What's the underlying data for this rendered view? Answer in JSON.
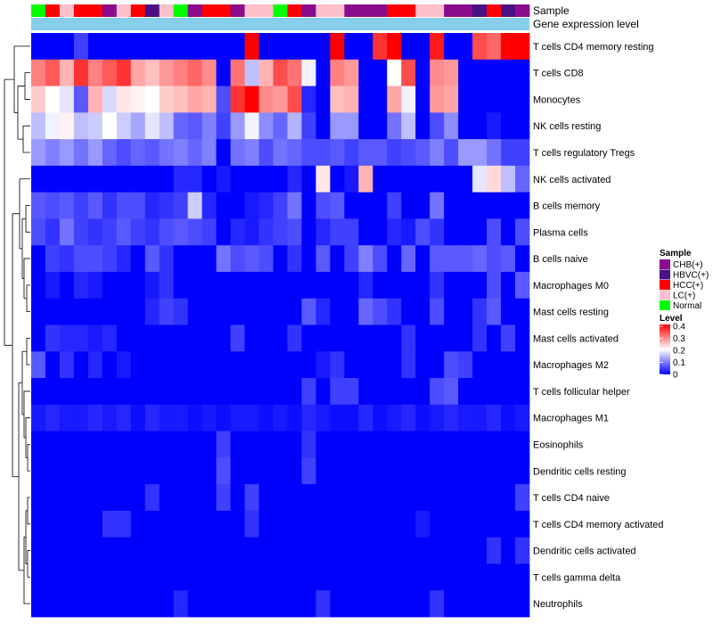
{
  "chart_data": {
    "type": "heatmap",
    "title": "",
    "annotation_labels": {
      "sample": "Sample",
      "gene_expression": "Gene expression level"
    },
    "sample_legend": {
      "title": "Sample",
      "entries": [
        {
          "label": "CHB(+)",
          "color": "#8B0C8C"
        },
        {
          "label": "HBVC(+)",
          "color": "#4B1085"
        },
        {
          "label": "HCC(+)",
          "color": "#FF0000"
        },
        {
          "label": "LC(+)",
          "color": "#FFC0CB"
        },
        {
          "label": "Normal",
          "color": "#00FF00"
        }
      ]
    },
    "level_legend": {
      "title": "Level",
      "ticks": [
        "0.4",
        "0.3",
        "0.2",
        "0.1",
        "0"
      ],
      "range": [
        0,
        0.4
      ],
      "colors": {
        "low": "#0000FF",
        "mid": "#FFFFFF",
        "high": "#FF0000"
      }
    },
    "gene_expression_bar_color": "#87CEEB",
    "sample_groups": [
      "Normal",
      "HCC(+)",
      "LC(+)",
      "HCC(+)",
      "HCC(+)",
      "CHB(+)",
      "LC(+)",
      "HCC(+)",
      "HBVC(+)",
      "LC(+)",
      "Normal",
      "CHB(+)",
      "HCC(+)",
      "HCC(+)",
      "CHB(+)",
      "LC(+)",
      "LC(+)",
      "Normal",
      "HCC(+)",
      "CHB(+)",
      "LC(+)",
      "LC(+)",
      "CHB(+)",
      "CHB(+)",
      "CHB(+)",
      "HCC(+)",
      "HCC(+)",
      "LC(+)",
      "LC(+)",
      "CHB(+)",
      "CHB(+)",
      "HBVC(+)",
      "HCC(+)",
      "HBVC(+)",
      "CHB(+)"
    ],
    "rows": [
      "T cells CD4 memory resting",
      "T cells CD8",
      "Monocytes",
      "NK cells resting",
      "T cells regulatory  Tregs",
      "NK cells activated",
      "B cells memory",
      "Plasma cells",
      "B cells naive",
      "Macrophages M0",
      "Mast cells resting",
      "Mast cells activated",
      "Macrophages M2",
      "T cells follicular helper",
      "Macrophages M1",
      "Eosinophils",
      "Dendritic cells resting",
      "T cells CD4 naive",
      "T cells CD4 memory activated",
      "Dendritic cells activated",
      "T cells gamma delta",
      "Neutrophils"
    ],
    "values": [
      [
        0.0,
        0.0,
        0.0,
        0.05,
        0.0,
        0.0,
        0.0,
        0.0,
        0.0,
        0.0,
        0.0,
        0.0,
        0.0,
        0.0,
        0.0,
        0.42,
        0.0,
        0.0,
        0.0,
        0.0,
        0.0,
        0.42,
        0.0,
        0.0,
        0.36,
        0.4,
        0.0,
        0.0,
        0.38,
        0.0,
        0.0,
        0.34,
        0.32,
        0.42,
        0.42
      ],
      [
        0.3,
        0.33,
        0.26,
        0.36,
        0.3,
        0.33,
        0.36,
        0.27,
        0.25,
        0.28,
        0.3,
        0.32,
        0.29,
        0.0,
        0.31,
        0.15,
        0.26,
        0.34,
        0.31,
        0.19,
        0.0,
        0.3,
        0.28,
        0.0,
        0.0,
        0.2,
        0.34,
        0.0,
        0.29,
        0.28,
        0.0,
        0.0,
        0.0,
        0.0,
        0.0
      ],
      [
        0.24,
        0.2,
        0.18,
        0.07,
        0.26,
        0.17,
        0.22,
        0.21,
        0.2,
        0.24,
        0.25,
        0.27,
        0.26,
        0.06,
        0.36,
        0.4,
        0.29,
        0.28,
        0.34,
        0.03,
        0.0,
        0.25,
        0.26,
        0.0,
        0.0,
        0.27,
        0.19,
        0.0,
        0.28,
        0.27,
        0.0,
        0.0,
        0.0,
        0.0,
        0.0
      ],
      [
        0.15,
        0.19,
        0.21,
        0.15,
        0.16,
        0.2,
        0.16,
        0.13,
        0.18,
        0.15,
        0.08,
        0.07,
        0.1,
        0.05,
        0.12,
        0.19,
        0.11,
        0.08,
        0.14,
        0.05,
        0.0,
        0.12,
        0.12,
        0.0,
        0.0,
        0.09,
        0.15,
        0.0,
        0.06,
        0.11,
        0.0,
        0.0,
        0.02,
        0.0,
        0.0
      ],
      [
        0.12,
        0.1,
        0.12,
        0.09,
        0.12,
        0.08,
        0.06,
        0.08,
        0.07,
        0.09,
        0.1,
        0.08,
        0.1,
        0.0,
        0.09,
        0.1,
        0.06,
        0.09,
        0.08,
        0.06,
        0.06,
        0.07,
        0.05,
        0.07,
        0.07,
        0.05,
        0.06,
        0.07,
        0.1,
        0.06,
        0.12,
        0.12,
        0.09,
        0.05,
        0.05
      ],
      [
        0.0,
        0.0,
        0.0,
        0.0,
        0.0,
        0.0,
        0.0,
        0.0,
        0.0,
        0.0,
        0.03,
        0.03,
        0.0,
        0.02,
        0.0,
        0.0,
        0.0,
        0.0,
        0.03,
        0.0,
        0.22,
        0.0,
        0.02,
        0.26,
        0.0,
        0.0,
        0.0,
        0.0,
        0.0,
        0.0,
        0.0,
        0.18,
        0.23,
        0.15,
        0.08
      ],
      [
        0.07,
        0.06,
        0.07,
        0.05,
        0.07,
        0.04,
        0.06,
        0.06,
        0.03,
        0.04,
        0.05,
        0.16,
        0.03,
        0.0,
        0.0,
        0.02,
        0.03,
        0.05,
        0.09,
        0.0,
        0.06,
        0.07,
        0.0,
        0.0,
        0.0,
        0.05,
        0.0,
        0.0,
        0.09,
        0.0,
        0.0,
        0.0,
        0.0,
        0.0,
        0.0
      ],
      [
        0.06,
        0.04,
        0.09,
        0.05,
        0.04,
        0.05,
        0.07,
        0.05,
        0.04,
        0.06,
        0.07,
        0.06,
        0.05,
        0.0,
        0.03,
        0.02,
        0.04,
        0.05,
        0.06,
        0.0,
        0.03,
        0.05,
        0.05,
        0.0,
        0.0,
        0.03,
        0.02,
        0.06,
        0.04,
        0.0,
        0.0,
        0.0,
        0.06,
        0.0,
        0.06
      ],
      [
        0.0,
        0.05,
        0.04,
        0.06,
        0.06,
        0.05,
        0.03,
        0.0,
        0.07,
        0.04,
        0.0,
        0.0,
        0.0,
        0.09,
        0.06,
        0.07,
        0.06,
        0.0,
        0.04,
        0.0,
        0.07,
        0.0,
        0.05,
        0.1,
        0.06,
        0.0,
        0.08,
        0.0,
        0.07,
        0.07,
        0.07,
        0.08,
        0.06,
        0.07,
        0.0
      ],
      [
        0.0,
        0.02,
        0.0,
        0.03,
        0.02,
        0.0,
        0.0,
        0.0,
        0.02,
        0.04,
        0.0,
        0.0,
        0.0,
        0.0,
        0.0,
        0.0,
        0.0,
        0.0,
        0.0,
        0.0,
        0.0,
        0.0,
        0.0,
        0.03,
        0.0,
        0.0,
        0.0,
        0.0,
        0.04,
        0.0,
        0.0,
        0.0,
        0.06,
        0.0,
        0.07
      ],
      [
        0.0,
        0.0,
        0.0,
        0.0,
        0.0,
        0.0,
        0.0,
        0.0,
        0.03,
        0.05,
        0.04,
        0.0,
        0.0,
        0.0,
        0.0,
        0.0,
        0.0,
        0.0,
        0.0,
        0.07,
        0.03,
        0.0,
        0.0,
        0.08,
        0.06,
        0.04,
        0.0,
        0.0,
        0.06,
        0.0,
        0.0,
        0.04,
        0.07,
        0.0,
        0.0
      ],
      [
        0.0,
        0.04,
        0.03,
        0.03,
        0.02,
        0.03,
        0.0,
        0.0,
        0.0,
        0.0,
        0.0,
        0.0,
        0.0,
        0.0,
        0.05,
        0.0,
        0.0,
        0.0,
        0.04,
        0.0,
        0.0,
        0.0,
        0.0,
        0.0,
        0.0,
        0.0,
        0.04,
        0.0,
        0.0,
        0.0,
        0.0,
        0.04,
        0.0,
        0.05,
        0.0
      ],
      [
        0.07,
        0.0,
        0.04,
        0.0,
        0.03,
        0.0,
        0.02,
        0.0,
        0.0,
        0.0,
        0.0,
        0.0,
        0.0,
        0.0,
        0.0,
        0.0,
        0.0,
        0.0,
        0.0,
        0.0,
        0.02,
        0.04,
        0.0,
        0.0,
        0.0,
        0.0,
        0.04,
        0.0,
        0.0,
        0.06,
        0.05,
        0.0,
        0.0,
        0.0,
        0.0
      ],
      [
        0.0,
        0.0,
        0.0,
        0.0,
        0.0,
        0.0,
        0.0,
        0.0,
        0.0,
        0.0,
        0.0,
        0.0,
        0.0,
        0.0,
        0.0,
        0.0,
        0.0,
        0.0,
        0.0,
        0.05,
        0.0,
        0.05,
        0.05,
        0.0,
        0.0,
        0.0,
        0.0,
        0.0,
        0.06,
        0.07,
        0.0,
        0.0,
        0.0,
        0.0,
        0.0
      ],
      [
        0.02,
        0.03,
        0.02,
        0.02,
        0.03,
        0.02,
        0.03,
        0.01,
        0.03,
        0.02,
        0.02,
        0.01,
        0.02,
        0.01,
        0.02,
        0.02,
        0.01,
        0.02,
        0.01,
        0.03,
        0.02,
        0.01,
        0.01,
        0.03,
        0.01,
        0.02,
        0.03,
        0.01,
        0.02,
        0.03,
        0.02,
        0.02,
        0.03,
        0.01,
        0.02
      ],
      [
        0.0,
        0.0,
        0.0,
        0.0,
        0.0,
        0.0,
        0.0,
        0.0,
        0.0,
        0.0,
        0.0,
        0.0,
        0.0,
        0.05,
        0.0,
        0.0,
        0.0,
        0.0,
        0.0,
        0.04,
        0.0,
        0.0,
        0.0,
        0.0,
        0.0,
        0.0,
        0.0,
        0.0,
        0.0,
        0.0,
        0.0,
        0.0,
        0.0,
        0.0,
        0.0
      ],
      [
        0.0,
        0.0,
        0.0,
        0.0,
        0.0,
        0.0,
        0.0,
        0.0,
        0.0,
        0.0,
        0.0,
        0.0,
        0.0,
        0.06,
        0.0,
        0.0,
        0.0,
        0.0,
        0.0,
        0.05,
        0.0,
        0.0,
        0.0,
        0.0,
        0.0,
        0.0,
        0.0,
        0.0,
        0.0,
        0.0,
        0.0,
        0.0,
        0.0,
        0.0,
        0.0
      ],
      [
        0.0,
        0.0,
        0.0,
        0.0,
        0.0,
        0.0,
        0.0,
        0.0,
        0.04,
        0.0,
        0.0,
        0.0,
        0.0,
        0.05,
        0.0,
        0.05,
        0.0,
        0.0,
        0.0,
        0.0,
        0.0,
        0.0,
        0.0,
        0.0,
        0.0,
        0.0,
        0.0,
        0.0,
        0.0,
        0.0,
        0.0,
        0.0,
        0.0,
        0.0,
        0.05
      ],
      [
        0.0,
        0.0,
        0.0,
        0.0,
        0.0,
        0.04,
        0.04,
        0.0,
        0.0,
        0.0,
        0.0,
        0.0,
        0.0,
        0.0,
        0.0,
        0.04,
        0.0,
        0.0,
        0.0,
        0.0,
        0.0,
        0.0,
        0.0,
        0.0,
        0.0,
        0.0,
        0.0,
        0.02,
        0.0,
        0.0,
        0.0,
        0.0,
        0.0,
        0.0,
        0.0
      ],
      [
        0.0,
        0.0,
        0.0,
        0.0,
        0.0,
        0.0,
        0.0,
        0.0,
        0.0,
        0.0,
        0.0,
        0.0,
        0.0,
        0.0,
        0.0,
        0.0,
        0.0,
        0.0,
        0.0,
        0.0,
        0.0,
        0.0,
        0.0,
        0.0,
        0.0,
        0.0,
        0.0,
        0.0,
        0.0,
        0.0,
        0.0,
        0.0,
        0.04,
        0.0,
        0.04
      ],
      [
        0.0,
        0.0,
        0.0,
        0.0,
        0.0,
        0.0,
        0.0,
        0.0,
        0.0,
        0.0,
        0.0,
        0.0,
        0.0,
        0.0,
        0.0,
        0.0,
        0.0,
        0.0,
        0.0,
        0.0,
        0.0,
        0.0,
        0.0,
        0.0,
        0.0,
        0.0,
        0.0,
        0.0,
        0.0,
        0.0,
        0.0,
        0.0,
        0.0,
        0.0,
        0.0
      ],
      [
        0.0,
        0.0,
        0.0,
        0.0,
        0.0,
        0.0,
        0.0,
        0.0,
        0.0,
        0.0,
        0.03,
        0.0,
        0.0,
        0.0,
        0.0,
        0.0,
        0.0,
        0.0,
        0.0,
        0.0,
        0.04,
        0.0,
        0.0,
        0.0,
        0.0,
        0.0,
        0.0,
        0.0,
        0.04,
        0.0,
        0.0,
        0.0,
        0.0,
        0.0,
        0.0
      ]
    ]
  }
}
